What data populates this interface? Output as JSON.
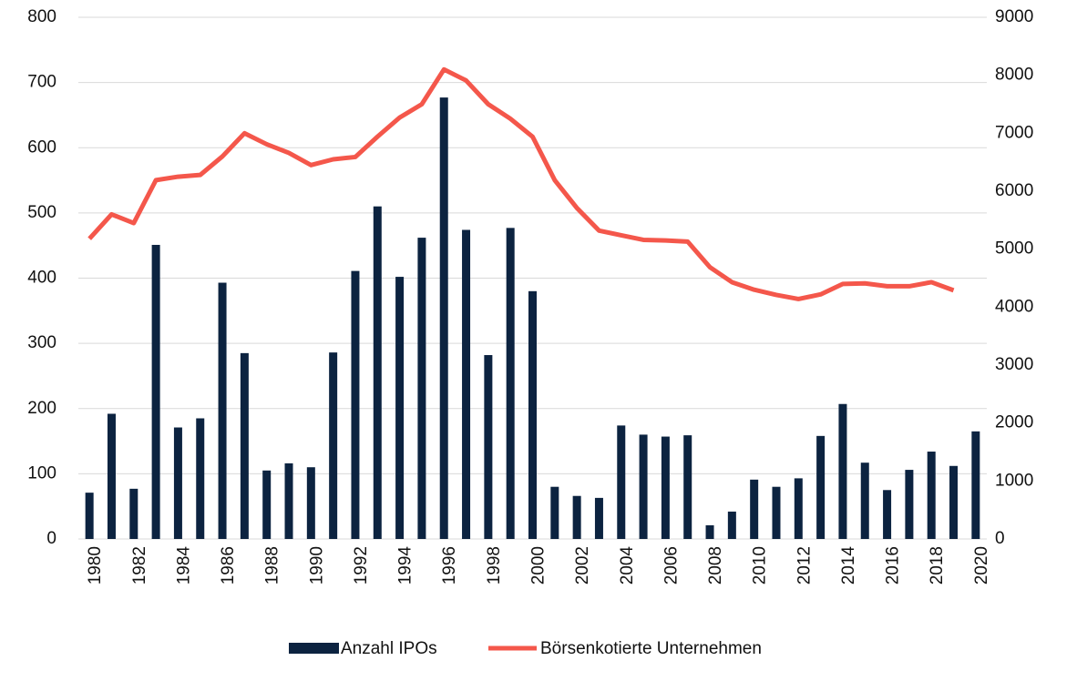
{
  "chart_data": {
    "type": "bar",
    "categories": [
      "1980",
      null,
      "1982",
      null,
      "1984",
      null,
      "1986",
      null,
      "1988",
      null,
      "1990",
      null,
      "1992",
      null,
      "1994",
      null,
      "1996",
      null,
      "1998",
      null,
      "2000",
      null,
      "2002",
      null,
      "2004",
      null,
      "2006",
      null,
      "2008",
      null,
      "2010",
      null,
      "2012",
      null,
      "2014",
      null,
      "2016",
      null,
      "2018",
      null,
      "2020"
    ],
    "series": [
      {
        "name": "Anzahl IPOs",
        "type": "bar",
        "color": "#0c2340",
        "values": [
          71,
          192,
          77,
          451,
          171,
          185,
          393,
          285,
          105,
          116,
          110,
          286,
          411,
          510,
          402,
          462,
          677,
          474,
          282,
          477,
          380,
          80,
          66,
          63,
          174,
          160,
          157,
          159,
          21,
          42,
          91,
          80,
          93,
          158,
          207,
          117,
          75,
          106,
          134,
          112,
          165
        ]
      },
      {
        "name": "Börsenkotierte Unternehmen",
        "type": "line",
        "axis": "y2",
        "color": "#f4574b",
        "values": [
          5180,
          5600,
          5450,
          6190,
          6250,
          6280,
          6600,
          7000,
          6810,
          6660,
          6450,
          6550,
          6590,
          6940,
          7270,
          7500,
          8100,
          7910,
          7500,
          7250,
          6940,
          6190,
          5710,
          5320,
          5240,
          5160,
          5150,
          5130,
          4690,
          4430,
          4300,
          4210,
          4140,
          4220,
          4400,
          4410,
          4360,
          4360,
          4430,
          4290,
          null
        ]
      }
    ],
    "ylim": [
      0,
      800
    ],
    "yticks": [
      0,
      100,
      200,
      300,
      400,
      500,
      600,
      700,
      800
    ],
    "y2lim": [
      0,
      9000
    ],
    "y2ticks": [
      0,
      1000,
      2000,
      3000,
      4000,
      5000,
      6000,
      7000,
      8000,
      9000
    ],
    "grid": true,
    "legend": "bottom"
  }
}
